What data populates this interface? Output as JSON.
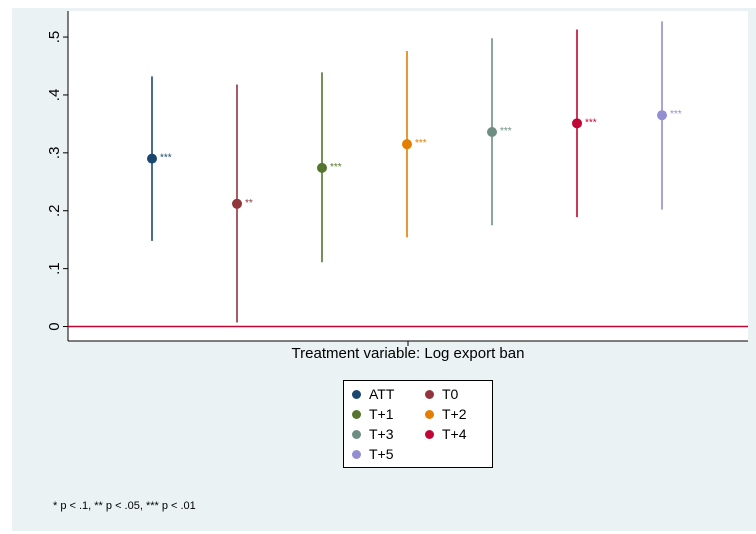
{
  "chart_data": {
    "type": "scatter",
    "xlabel": "Treatment variable: Log export ban",
    "ylabel": "",
    "ylim": [
      -0.025,
      0.545
    ],
    "y_ticks": [
      0,
      0.1,
      0.2,
      0.3,
      0.4,
      0.5
    ],
    "y_tick_labels": [
      "0",
      ".1",
      ".2",
      ".3",
      ".4",
      ".5"
    ],
    "reference_line": 0,
    "grid": false,
    "legend_position": "bottom-center",
    "series": [
      {
        "name": "ATT",
        "estimate": 0.29,
        "ci_low": 0.148,
        "ci_high": 0.432,
        "significance": "***",
        "color": "#1a476f"
      },
      {
        "name": "T0",
        "estimate": 0.212,
        "ci_low": 0.007,
        "ci_high": 0.418,
        "significance": "**",
        "color": "#90353b"
      },
      {
        "name": "T+1",
        "estimate": 0.274,
        "ci_low": 0.111,
        "ci_high": 0.439,
        "significance": "***",
        "color": "#55752f"
      },
      {
        "name": "T+2",
        "estimate": 0.315,
        "ci_low": 0.154,
        "ci_high": 0.476,
        "significance": "***",
        "color": "#e37e00"
      },
      {
        "name": "T+3",
        "estimate": 0.336,
        "ci_low": 0.175,
        "ci_high": 0.498,
        "significance": "***",
        "color": "#6e8e84"
      },
      {
        "name": "T+4",
        "estimate": 0.351,
        "ci_low": 0.189,
        "ci_high": 0.513,
        "significance": "***",
        "color": "#c10534"
      },
      {
        "name": "T+5",
        "estimate": 0.365,
        "ci_low": 0.202,
        "ci_high": 0.527,
        "significance": "***",
        "color": "#938dd2"
      }
    ],
    "note": "* p < .1, ** p < .05, *** p < .01"
  },
  "colors": {
    "background": "#eaf2f3",
    "plot_area": "#ffffff",
    "zero_line": "#c10534"
  }
}
